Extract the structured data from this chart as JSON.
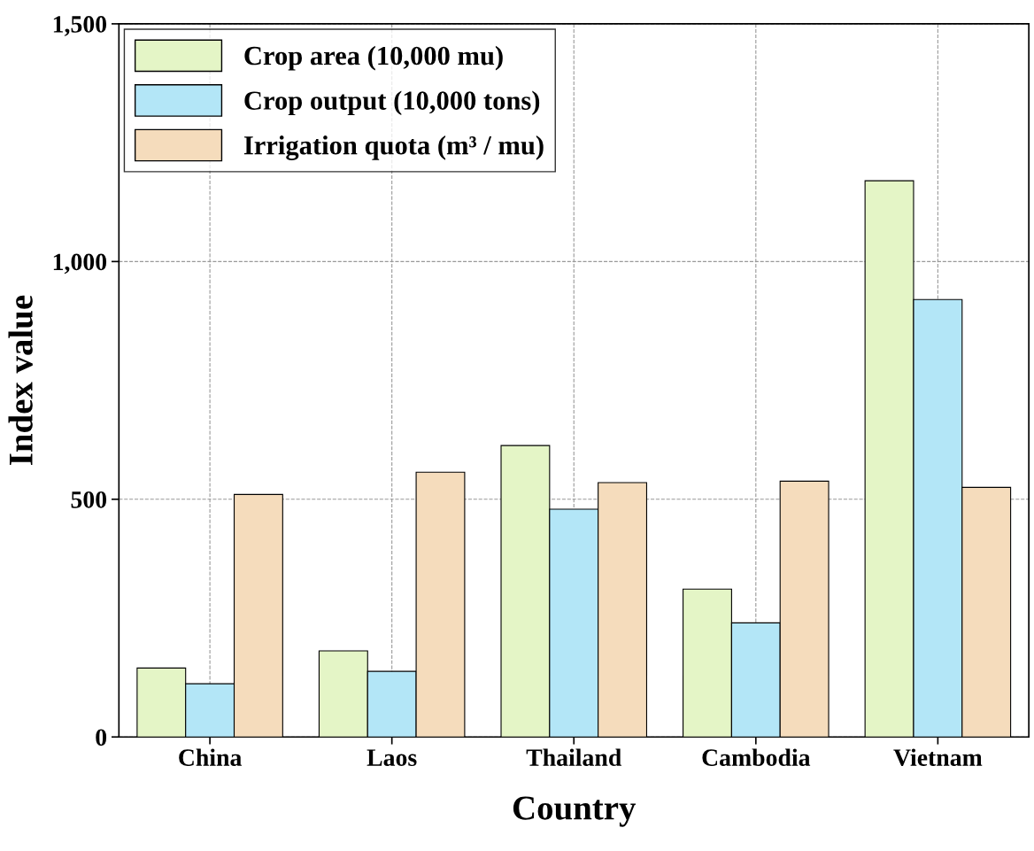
{
  "chart_data": {
    "type": "bar",
    "xlabel": "Country",
    "ylabel": "Index value",
    "categories": [
      "China",
      "Laos",
      "Thailand",
      "Cambodia",
      "Vietnam"
    ],
    "series": [
      {
        "name": "Crop area (10,000 mu)",
        "color": "#e4f5c6",
        "values": [
          145,
          181,
          613,
          311,
          1170
        ]
      },
      {
        "name": "Crop output (10,000 tons)",
        "color": "#b3e6f7",
        "values": [
          112,
          138,
          479,
          240,
          920
        ]
      },
      {
        "name": "Irrigation quota (m³ / mu)",
        "color": "#f5dcbc",
        "values": [
          510,
          557,
          535,
          538,
          525
        ]
      }
    ],
    "ylim": [
      0,
      1500
    ],
    "yticks": [
      0,
      500,
      {
        "value": 1000,
        "label": "1,000"
      },
      {
        "value": 1500,
        "label": "1,500"
      }
    ],
    "grid": true,
    "legend": "top left"
  }
}
